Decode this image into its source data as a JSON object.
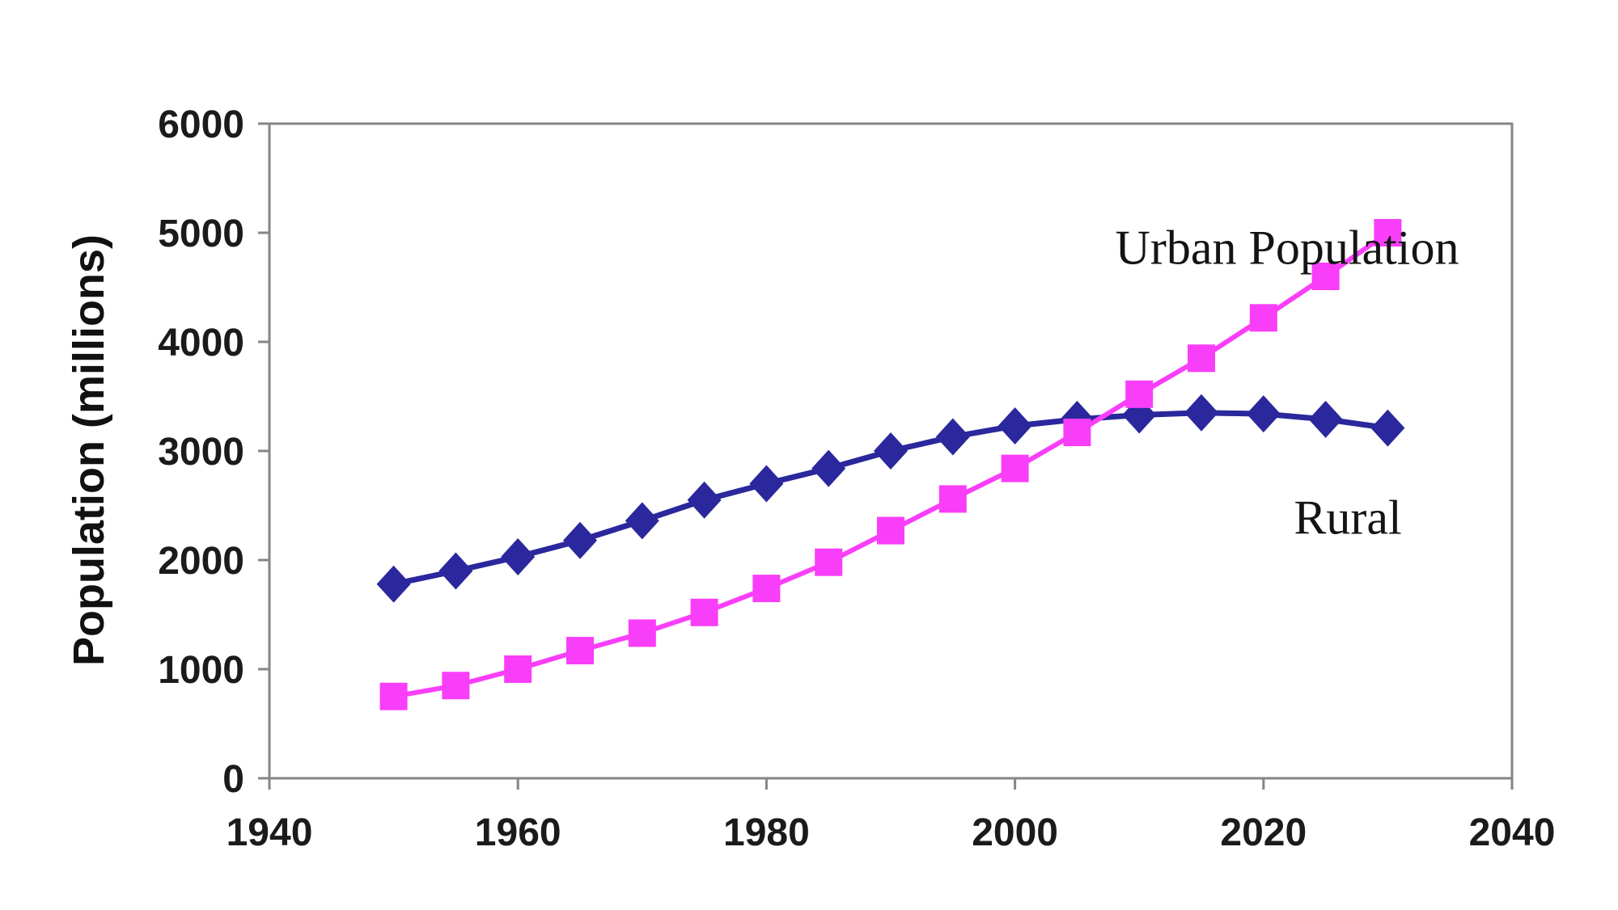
{
  "page": {
    "background_color": "#ffffff"
  },
  "chart_data": {
    "type": "line",
    "title": "",
    "xlabel": "",
    "ylabel": "Population (millions)",
    "xlim": [
      1940,
      2040
    ],
    "ylim": [
      0,
      6000
    ],
    "x_ticks": [
      1940,
      1960,
      1980,
      2000,
      2020,
      2040
    ],
    "y_ticks": [
      0,
      1000,
      2000,
      3000,
      4000,
      5000,
      6000
    ],
    "grid": "off",
    "legend": "inline-text-labels",
    "frame_color": "#858585",
    "text_color": "#1b1b1b",
    "x": [
      1950,
      1955,
      1960,
      1965,
      1970,
      1975,
      1980,
      1985,
      1990,
      1995,
      2000,
      2005,
      2010,
      2015,
      2020,
      2025,
      2030
    ],
    "series": [
      {
        "name": "Rural",
        "marker": "diamond",
        "color": "#2b279d",
        "line_width": 7,
        "values": [
          1780,
          1900,
          2030,
          2180,
          2360,
          2550,
          2700,
          2840,
          3000,
          3130,
          3230,
          3290,
          3330,
          3350,
          3340,
          3290,
          3210
        ]
      },
      {
        "name": "Urban Population",
        "marker": "square",
        "color": "#f93ef9",
        "line_width": 6,
        "values": [
          750,
          850,
          1000,
          1170,
          1330,
          1520,
          1740,
          1980,
          2270,
          2560,
          2840,
          3170,
          3520,
          3850,
          4220,
          4600,
          5000
        ]
      }
    ]
  }
}
